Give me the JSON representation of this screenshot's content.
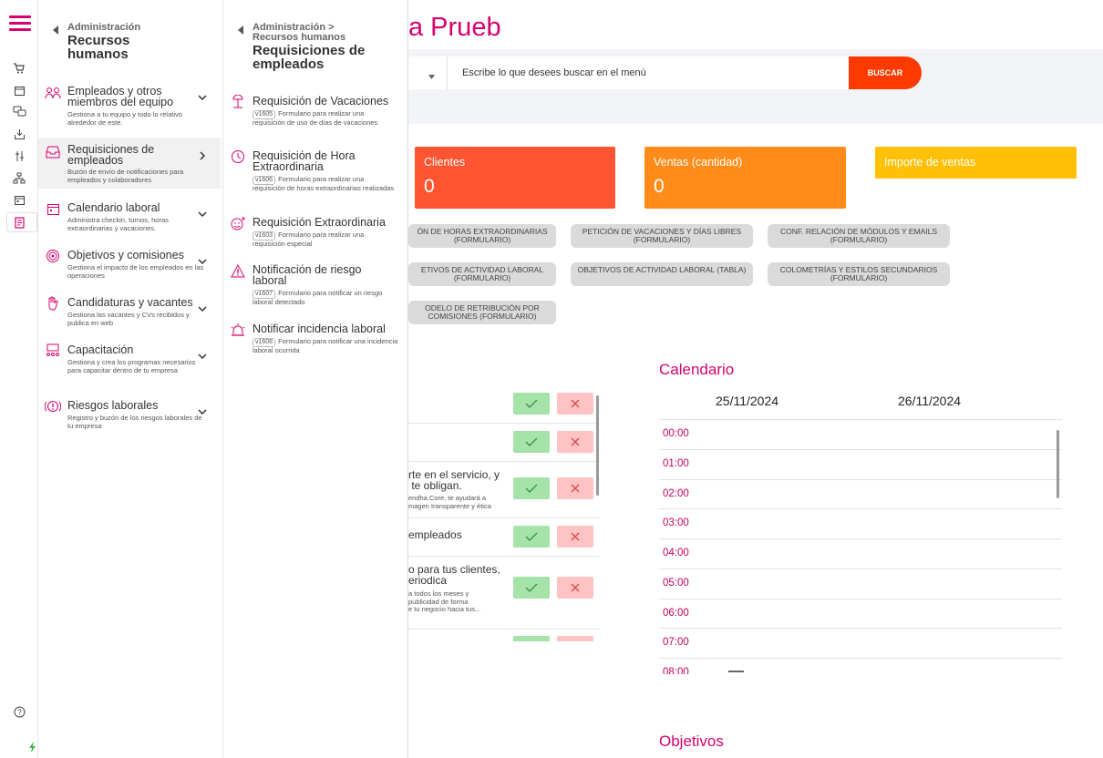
{
  "app": {
    "title": "a Prueb",
    "accent": "#d6006e"
  },
  "rail": {
    "icons": [
      "menu-icon",
      "cart-icon",
      "calendar-icon",
      "chat-icon",
      "inbox-icon",
      "sliders-icon",
      "org-icon",
      "calendar-check-icon",
      "document-icon",
      "help-icon",
      "bolt-icon"
    ]
  },
  "panel1": {
    "crumb_small": "Administración",
    "crumb_big": "Recursos humanos",
    "items": [
      {
        "title": "Empleados y otros miembros del equipo",
        "desc": "Gestiona a tu equipo y todo lo relativo alrededor de este."
      },
      {
        "title": "Requisiciones de empleados",
        "desc": "Buzón de envío de notificaciones para empleados y colaboradores"
      },
      {
        "title": "Calendario laboral",
        "desc": "Administra checkin, turnos, horas extraordinarias y vacaciones."
      },
      {
        "title": "Objetivos y comisiones",
        "desc": "Gestiona el impacto de los empleados en las operaciones"
      },
      {
        "title": "Candidaturas y vacantes",
        "desc": "Gestiona las vacantes y CVs recibidos y publica en web"
      },
      {
        "title": "Capacitación",
        "desc": "Gestiona y crea los programas necesarios para capacitar dentro de tu empresa"
      },
      {
        "title": "Riesgos laborales",
        "desc": "Registro y buzón de los riesgos laborales de tu empresa"
      }
    ]
  },
  "panel2": {
    "crumb_small1": "Administración >",
    "crumb_small2": "Recursos humanos",
    "crumb_big": "Requisiciones de empleados",
    "items": [
      {
        "title": "Requisición de Vacaciones",
        "code": "v1605",
        "desc": "Formulario para realizar una requisición de uso de días de vacaciones"
      },
      {
        "title": "Requisición de Hora Extraordinaria",
        "code": "v1606",
        "desc": "Formulario para realizar una requisición de horas extraordinarias realizadas"
      },
      {
        "title": "Requisición Extraordinaria",
        "code": "v1603",
        "desc": "Formulario para realizar una requisición especial"
      },
      {
        "title": "Notificación de riesgo laboral",
        "code": "v1607",
        "desc": "Formulario para notificar un riesgo laboral detectado"
      },
      {
        "title": "Notificar incidencia laboral",
        "code": "v1608",
        "desc": "Formulario para notificar una incidencia laboral ocurrida"
      }
    ]
  },
  "search": {
    "placeholder": "Escribe lo que desees buscar en el menú",
    "button": "BUSCAR"
  },
  "cards": [
    {
      "label": "Clientes",
      "value": "0",
      "color": "#ff5533"
    },
    {
      "label": "Ventas (cantidad)",
      "value": "0",
      "color": "#ff8c1a"
    },
    {
      "label": "Importe de ventas",
      "value": "",
      "color": "#ffc107"
    }
  ],
  "pills": [
    "ón de horas extraordinarias (formulario)",
    "petición de vacaciones y días libres (formulario)",
    "conf. relación de módulos y emails (formulario)",
    "etivos de actividad laboral (formulario)",
    "objetivos de actividad laboral (tabla)",
    "colometrías y estilos secundarios (formulario)",
    "odelo de retribución por comisiones (formulario)"
  ],
  "tasks": [
    {
      "text": "",
      "sub": ""
    },
    {
      "text": "",
      "sub": ""
    },
    {
      "text": "rte en el servicio, y\n te obligan.",
      "sub": "endha.Core, te ayudará a\nmagen transparente y ética"
    },
    {
      "text": "empleados",
      "sub": ""
    },
    {
      "text": "o para tus clientes,\neriodica",
      "sub": "a todos los meses y\npublicidad de forma\ne tu negocio hacia tus..."
    }
  ],
  "calendar": {
    "title": "Calendario",
    "dates": [
      "25/11/2024",
      "26/11/2024"
    ],
    "hours": [
      "00:00",
      "01:00",
      "02:00",
      "03:00",
      "04:00",
      "05:00",
      "06:00",
      "07:00",
      "08:00"
    ]
  },
  "objectives": {
    "title": "Objetivos"
  }
}
